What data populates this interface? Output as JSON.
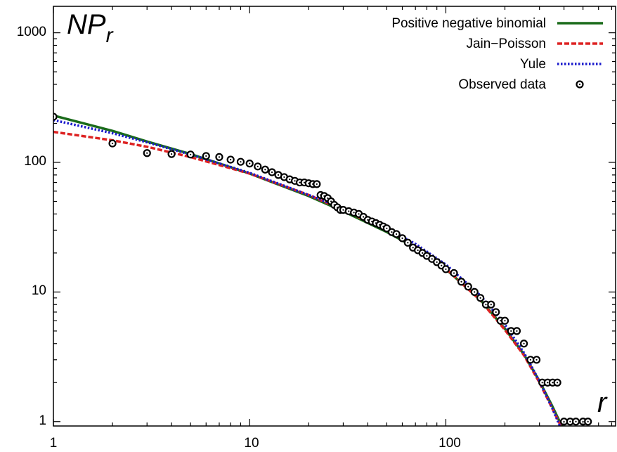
{
  "chart_data": {
    "type": "line",
    "xscale": "log",
    "yscale": "log",
    "xlim": [
      1,
      733
    ],
    "ylim": [
      0.925,
      1600
    ],
    "grid": false,
    "legend_position": "top-right",
    "x_ticks": [
      {
        "value": 1,
        "label": "1"
      },
      {
        "value": 10,
        "label": "10"
      },
      {
        "value": 100,
        "label": "100"
      }
    ],
    "y_ticks": [
      {
        "value": 1,
        "label": "1"
      },
      {
        "value": 10,
        "label": "10"
      },
      {
        "value": 100,
        "label": "100"
      },
      {
        "value": 1000,
        "label": "1000"
      }
    ],
    "y_axis_title": {
      "main": "NP",
      "sub": "r"
    },
    "x_axis_title": "r",
    "series": [
      {
        "name": "Positive negative binomial",
        "style": "solid",
        "color": "#1a6b1a",
        "x": [
          1,
          2,
          3,
          5,
          10,
          20,
          30,
          50,
          70,
          100,
          150,
          200,
          250,
          300,
          350,
          400
        ],
        "y": [
          230,
          175,
          145,
          116,
          82,
          55,
          42,
          29,
          22,
          15,
          8.7,
          5.2,
          3.3,
          2.05,
          1.3,
          0.85
        ]
      },
      {
        "name": "Jain−Poisson",
        "style": "dashed",
        "color": "#dd2222",
        "x": [
          1,
          2,
          3,
          5,
          10,
          20,
          30,
          50,
          70,
          100,
          150,
          200,
          250,
          300,
          350,
          400
        ],
        "y": [
          172,
          148,
          132,
          110,
          82,
          56,
          43,
          30,
          22.5,
          15.2,
          8.6,
          5.1,
          3.25,
          2.0,
          1.25,
          0.82
        ]
      },
      {
        "name": "Yule",
        "style": "dotted",
        "color": "#1a1acc",
        "x": [
          1,
          2,
          3,
          5,
          10,
          20,
          30,
          50,
          70,
          100,
          150,
          200,
          250,
          300,
          350,
          400
        ],
        "y": [
          212,
          168,
          143,
          115,
          83,
          56,
          44,
          31,
          23.5,
          16.3,
          9.4,
          5.6,
          3.4,
          2.05,
          1.25,
          0.78
        ]
      }
    ],
    "observed": {
      "name": "Observed data",
      "color": "#000000",
      "x": [
        1,
        2,
        3,
        4,
        5,
        6,
        7,
        8,
        9,
        10,
        11,
        12,
        13,
        14,
        15,
        16,
        17,
        18,
        19,
        20,
        21,
        22,
        23,
        24,
        25,
        26,
        27,
        28,
        29,
        30,
        32,
        34,
        36,
        38,
        40,
        42,
        44,
        46,
        48,
        50,
        53,
        56,
        60,
        64,
        68,
        72,
        76,
        80,
        85,
        90,
        95,
        100,
        110,
        120,
        130,
        140,
        150,
        160,
        170,
        180,
        190,
        200,
        215,
        230,
        250,
        270,
        290,
        310,
        330,
        350,
        370,
        400,
        430,
        460,
        500,
        530
      ],
      "y": [
        225,
        140,
        118,
        116,
        115,
        112,
        110,
        105,
        101,
        98,
        93,
        88,
        84,
        80,
        77,
        74,
        72,
        70,
        70,
        69,
        68,
        68,
        56,
        55,
        53,
        50,
        47,
        45,
        43,
        43,
        42,
        41,
        40,
        38,
        36,
        35,
        34,
        33,
        32,
        31,
        29,
        28,
        26,
        24,
        22,
        21,
        20,
        19,
        18,
        17,
        16,
        15,
        14,
        12,
        11,
        10,
        9,
        8,
        8,
        7,
        6,
        6,
        5,
        5,
        4,
        3,
        3,
        2,
        2,
        2,
        2,
        1,
        1,
        1,
        1,
        1
      ]
    }
  }
}
